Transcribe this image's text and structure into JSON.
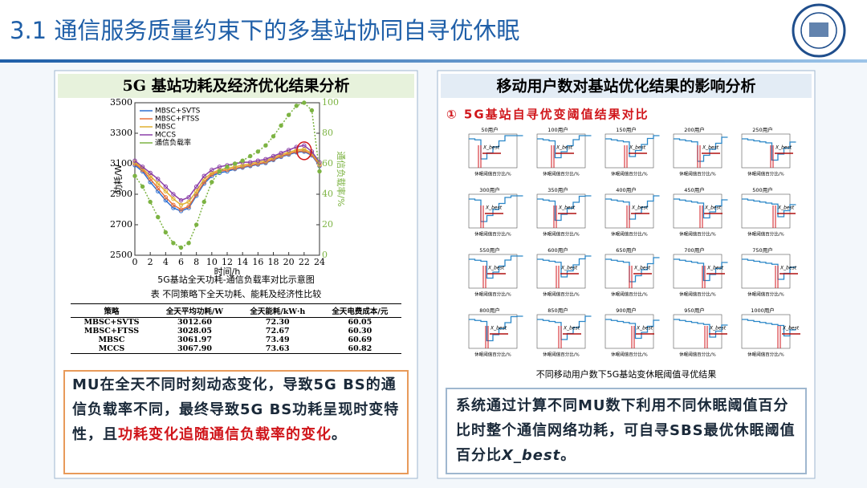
{
  "header": {
    "title": "3.1 通信服务质量约束下的多基站协同自寻优休眠"
  },
  "left_panel": {
    "title": "5G 基站功耗及经济优化结果分析",
    "caption": "5G基站全天功耗-通信负载率对比示意图",
    "table": {
      "caption": "表 不同策略下全天功耗、能耗及经济性比较",
      "columns": [
        "策略",
        "全天平均功耗/W",
        "全天能耗/kW·h",
        "全天电费成本/元"
      ],
      "rows": [
        [
          "MBSC+SVTS",
          "3012.60",
          "72.30",
          "60.05"
        ],
        [
          "MBSC+FTSS",
          "3028.05",
          "72.67",
          "60.30"
        ],
        [
          "MBSC",
          "3061.97",
          "73.49",
          "60.69"
        ],
        [
          "MCCS",
          "3067.90",
          "73.63",
          "60.82"
        ]
      ]
    },
    "text": [
      {
        "text": "MU在全天不同时刻动态变化，导致5G BS的通信负载率不同，最终导致5G BS功耗呈现时变特性，且"
      },
      {
        "text": "功耗变化追随通信负载率的变化",
        "emphasis": true
      },
      {
        "text": "。"
      }
    ]
  },
  "right_panel": {
    "title": "移动用户数对基站优化结果的影响分析",
    "subtitle": "① 5G基站自寻优变阈值结果对比",
    "subplot_titles": [
      "50用户",
      "100用户",
      "150用户",
      "200用户",
      "250用户",
      "300用户",
      "350用户",
      "400用户",
      "450用户",
      "500用户",
      "550用户",
      "600用户",
      "650用户",
      "700用户",
      "750用户",
      "800用户",
      "850用户",
      "900用户",
      "950用户",
      "1000用户"
    ],
    "subplot_marker": "X_best",
    "subplot_xlabel": "休眠阈值百分比/%",
    "caption": "不同移动用户数下5G基站变休眠阈值寻优结果",
    "text": [
      {
        "text": "系统通过计算不同MU数下利用不同休眠阈值百分比时整个通信网络功耗，可自寻SBS最优休眠阈值百分比"
      },
      {
        "text": "X_best",
        "italic": true
      },
      {
        "text": "。"
      }
    ]
  },
  "chart_data": {
    "type": "line",
    "xlabel": "时间/h",
    "ylabel": "功耗/W",
    "y2label": "通信负载率/%",
    "x": [
      0,
      1,
      2,
      3,
      4,
      5,
      6,
      7,
      8,
      9,
      10,
      11,
      12,
      13,
      14,
      15,
      16,
      17,
      18,
      19,
      20,
      21,
      22,
      23,
      24
    ],
    "xlim": [
      0,
      24
    ],
    "xticks": [
      0,
      2,
      4,
      6,
      8,
      10,
      12,
      14,
      16,
      18,
      20,
      22,
      24
    ],
    "ylim": [
      2500,
      3500
    ],
    "yticks": [
      2500,
      2700,
      2900,
      3100,
      3300,
      3500
    ],
    "y2lim": [
      0,
      100
    ],
    "y2ticks": [
      0,
      20,
      40,
      60,
      80,
      100
    ],
    "series": [
      {
        "name": "MBSC+SVTS",
        "color": "#2e6fd1",
        "values": [
          3090,
          3050,
          2980,
          2920,
          2860,
          2810,
          2790,
          2810,
          2890,
          2970,
          3020,
          3040,
          3050,
          3065,
          3075,
          3085,
          3095,
          3105,
          3125,
          3145,
          3160,
          3175,
          3180,
          3155,
          3085
        ]
      },
      {
        "name": "MBSC+FTSS",
        "color": "#e8703a",
        "values": [
          3100,
          3060,
          3000,
          2940,
          2880,
          2830,
          2800,
          2820,
          2900,
          2980,
          3030,
          3050,
          3060,
          3070,
          3080,
          3090,
          3100,
          3110,
          3130,
          3150,
          3165,
          3180,
          3185,
          3160,
          3090
        ]
      },
      {
        "name": "MBSC",
        "color": "#e0b030",
        "values": [
          3110,
          3070,
          3020,
          2970,
          2920,
          2870,
          2830,
          2850,
          2920,
          3000,
          3040,
          3060,
          3070,
          3080,
          3090,
          3100,
          3110,
          3120,
          3140,
          3160,
          3175,
          3190,
          3195,
          3170,
          3100
        ]
      },
      {
        "name": "MCCS",
        "color": "#8a3fa8",
        "values": [
          3120,
          3080,
          3040,
          3000,
          2950,
          2900,
          2860,
          2880,
          2950,
          3020,
          3060,
          3080,
          3090,
          3100,
          3110,
          3110,
          3120,
          3130,
          3150,
          3170,
          3190,
          3210,
          3220,
          3180,
          3110
        ]
      },
      {
        "name": "通信负载率",
        "color": "#7cb342",
        "axis": "y2",
        "values": [
          52,
          45,
          35,
          25,
          15,
          8,
          5,
          8,
          20,
          35,
          48,
          55,
          58,
          60,
          62,
          65,
          68,
          72,
          78,
          85,
          92,
          98,
          100,
          95,
          55
        ]
      }
    ]
  }
}
